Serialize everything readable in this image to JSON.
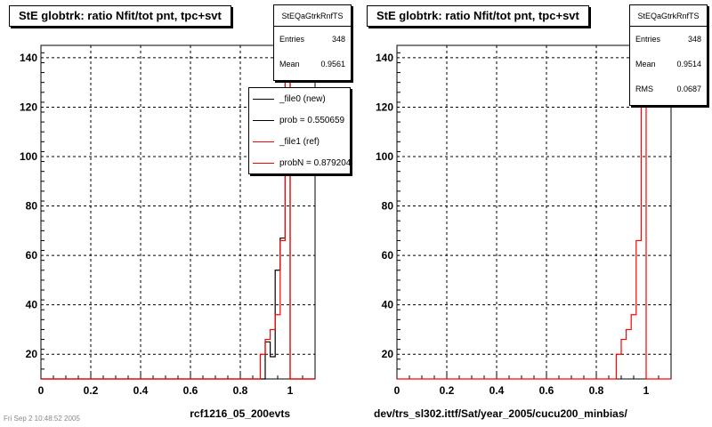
{
  "footer_text": "Fri Sep  2 10:48:52 2005",
  "colors": {
    "new": "#000000",
    "ref": "#ff0000",
    "grid": "#000000"
  },
  "chart_data": [
    {
      "type": "histogram",
      "title": "StE globtrk: ratio Nfit/tot pnt, tpc+svt",
      "xlabel": "rcf1216_05_200evts",
      "xlim": [
        0,
        1.1
      ],
      "ylim": [
        10,
        145
      ],
      "xticks": [
        "0",
        "0.2",
        "0.4",
        "0.6",
        "0.8",
        "1"
      ],
      "xtick_values": [
        0,
        0.2,
        0.4,
        0.6,
        0.8,
        1.0
      ],
      "yticks": [
        "20",
        "40",
        "60",
        "80",
        "100",
        "120",
        "140"
      ],
      "ytick_values": [
        20,
        40,
        60,
        80,
        100,
        120,
        140
      ],
      "grid": true,
      "stats": {
        "name": "StEQaGtrkRnfTS",
        "rows": [
          {
            "label": "Entries",
            "value": "348"
          },
          {
            "label": "Mean",
            "value": "0.9561"
          }
        ]
      },
      "legend": {
        "position": "top-right",
        "entries": [
          {
            "label": "_file0 (new)",
            "color": "#000000"
          },
          {
            "label": "prob = 0.550659",
            "color": "#000000"
          },
          {
            "label": "_file1 (ref)",
            "color": "#ff0000"
          },
          {
            "label": "probN = 0.879204",
            "color": "#ff0000"
          }
        ]
      },
      "series": [
        {
          "name": "_file0 (new)",
          "color": "#000000",
          "edges": [
            0.9,
            0.92,
            0.94,
            0.96,
            0.98,
            1.0
          ],
          "values": [
            25,
            19,
            54,
            67,
            138
          ]
        },
        {
          "name": "_file1 (ref)",
          "color": "#ff0000",
          "edges": [
            0.88,
            0.9,
            0.92,
            0.94,
            0.96,
            0.98,
            1.0
          ],
          "values": [
            20,
            26,
            30,
            36,
            66,
            138
          ]
        }
      ]
    },
    {
      "type": "histogram",
      "title": "StE globtrk: ratio Nfit/tot pnt, tpc+svt",
      "xlabel": "dev/trs_sl302.ittf/Sat/year_2005/cucu200_minbias/",
      "xlim": [
        0,
        1.1
      ],
      "ylim": [
        10,
        145
      ],
      "xticks": [
        "0",
        "0.2",
        "0.4",
        "0.6",
        "0.8",
        "1"
      ],
      "xtick_values": [
        0,
        0.2,
        0.4,
        0.6,
        0.8,
        1.0
      ],
      "yticks": [
        "20",
        "40",
        "60",
        "80",
        "100",
        "120",
        "140"
      ],
      "ytick_values": [
        20,
        40,
        60,
        80,
        100,
        120,
        140
      ],
      "grid": true,
      "stats": {
        "name": "StEQaGtrkRnfTS",
        "rows": [
          {
            "label": "Entries",
            "value": "348"
          },
          {
            "label": "Mean",
            "value": "0.9514"
          },
          {
            "label": "RMS",
            "value": "0.0687"
          }
        ]
      },
      "series": [
        {
          "name": "",
          "color": "#ff0000",
          "edges": [
            0.88,
            0.9,
            0.92,
            0.94,
            0.96,
            0.98,
            1.0
          ],
          "values": [
            20,
            26,
            30,
            36,
            66,
            138
          ]
        }
      ]
    }
  ]
}
